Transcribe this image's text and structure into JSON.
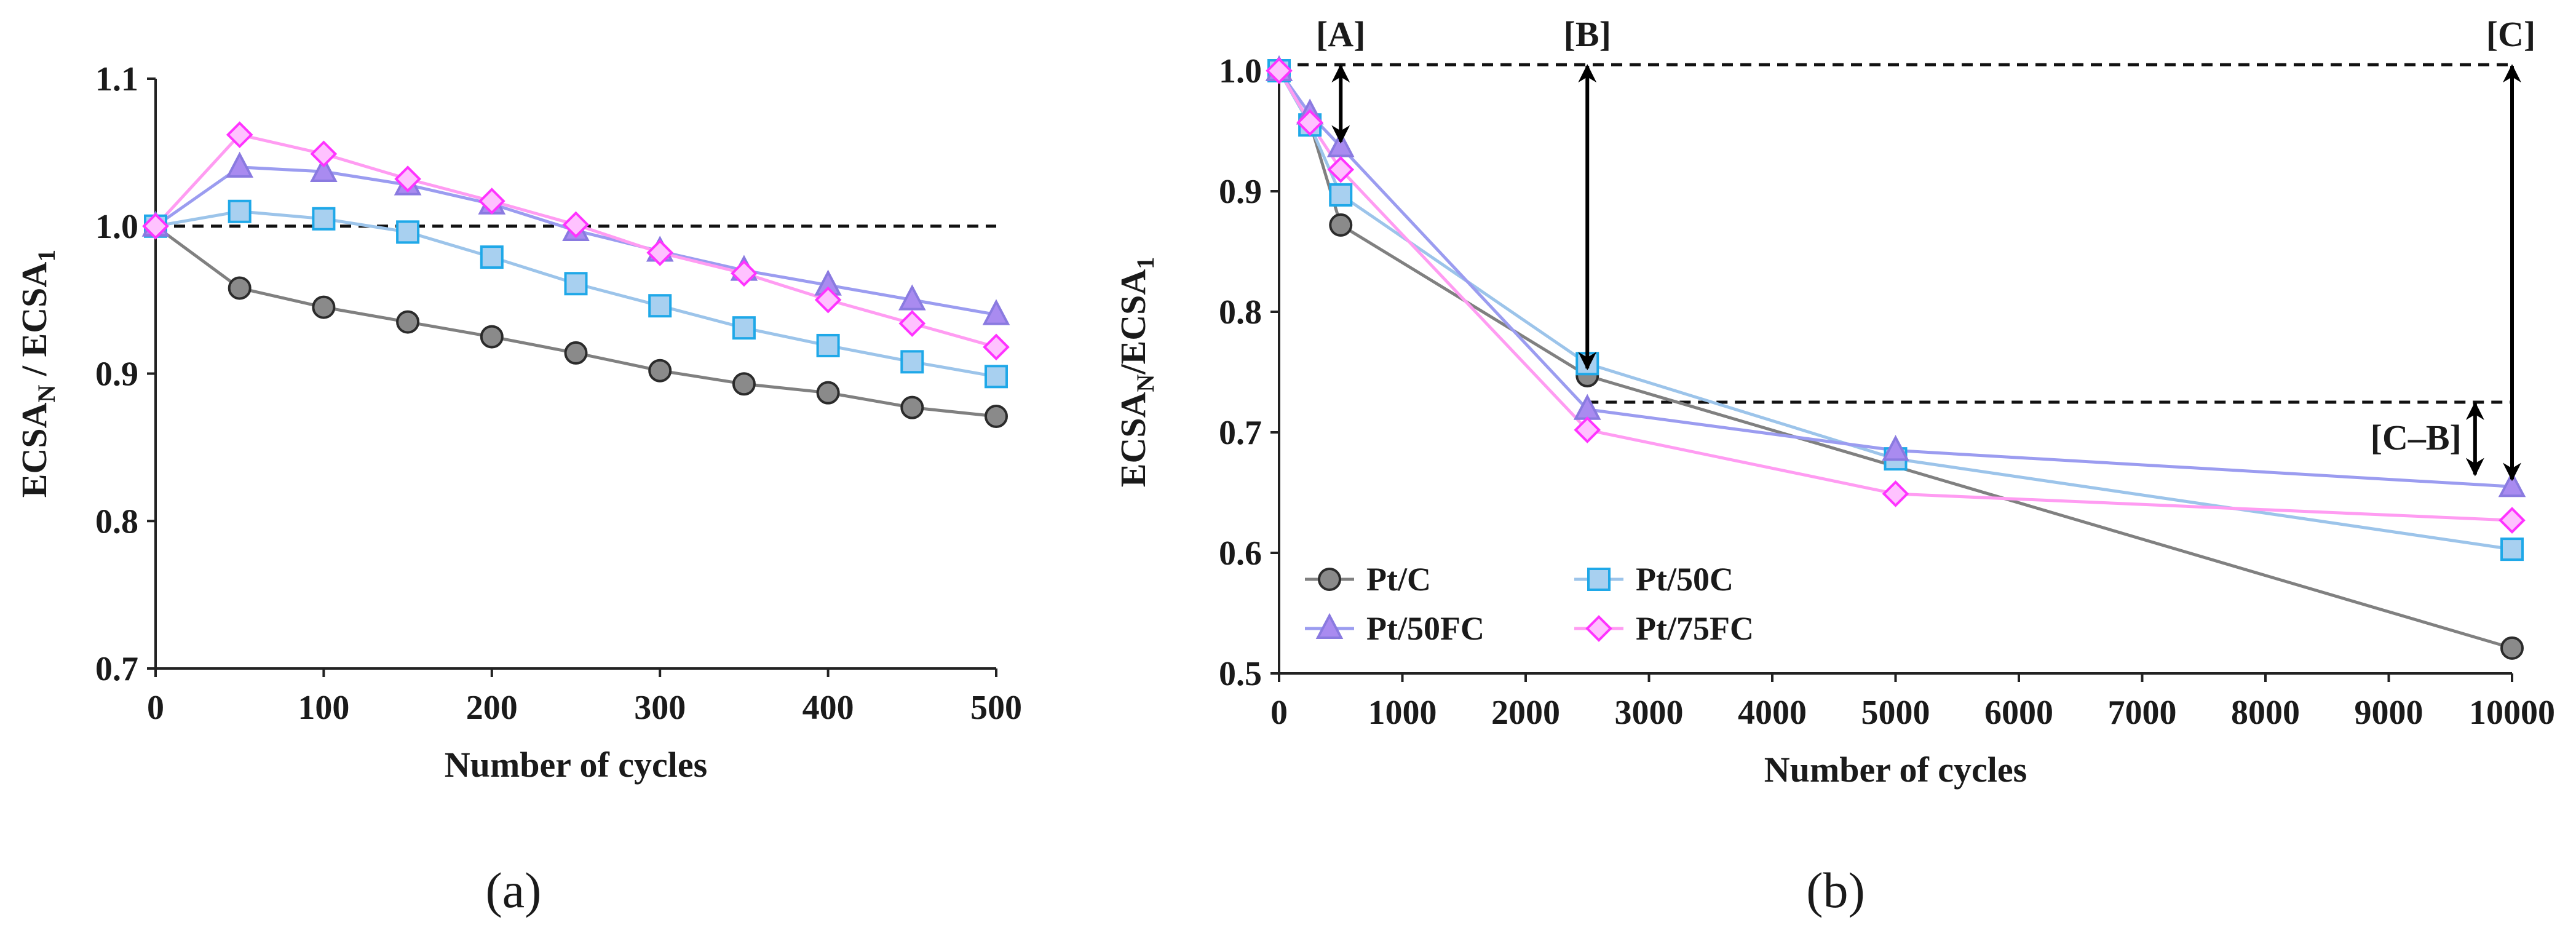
{
  "colors": {
    "Pt/C": "#808080",
    "Pt/50C": "#33b5f0",
    "Pt/50FC": "#a78cf2",
    "Pt/75FC": "#ff4cff",
    "line_Pt/C": "#808080",
    "line_Pt/50C": "#9cc4ea",
    "line_Pt/50FC": "#9b9cf0",
    "line_Pt/75FC": "#ff9cf2"
  },
  "chart_data": [
    {
      "panel_label": "(a)",
      "type": "line",
      "xlabel": "Number of cycles",
      "ylabel_main": "ECSA",
      "ylabel_sub_n": "N",
      "ylabel_mid": " / ECSA",
      "ylabel_sub_1": "1",
      "xlim": [
        0,
        500
      ],
      "ylim": [
        0.7,
        1.1
      ],
      "xticks": [
        "0",
        "100",
        "200",
        "300",
        "400",
        "500"
      ],
      "yticks": [
        "0.7",
        "0.8",
        "0.9",
        "1.0",
        "1.1"
      ],
      "reference_line_y": 1.0,
      "x": [
        0,
        50,
        100,
        150,
        200,
        250,
        300,
        350,
        400,
        450,
        500
      ],
      "series": [
        {
          "name": "Pt/C",
          "marker": "circle",
          "values": [
            1.0,
            0.958,
            0.945,
            0.935,
            0.925,
            0.914,
            0.902,
            0.893,
            0.887,
            0.877,
            0.871
          ]
        },
        {
          "name": "Pt/50C",
          "marker": "square",
          "values": [
            1.0,
            1.01,
            1.005,
            0.996,
            0.979,
            0.961,
            0.946,
            0.931,
            0.919,
            0.908,
            0.898
          ]
        },
        {
          "name": "Pt/50FC",
          "marker": "triangle",
          "values": [
            1.0,
            1.04,
            1.037,
            1.028,
            1.015,
            0.997,
            0.983,
            0.97,
            0.96,
            0.95,
            0.94
          ]
        },
        {
          "name": "Pt/75FC",
          "marker": "diamond",
          "values": [
            1.0,
            1.062,
            1.049,
            1.032,
            1.017,
            1.001,
            0.982,
            0.968,
            0.95,
            0.934,
            0.918
          ]
        }
      ]
    },
    {
      "panel_label": "(b)",
      "type": "line",
      "xlabel": "Number of cycles",
      "ylabel_main": "ECSA",
      "ylabel_sub_n": "N",
      "ylabel_mid": "/ECSA",
      "ylabel_sub_1": "1",
      "xlim": [
        0,
        10000
      ],
      "ylim": [
        0.5,
        1.0
      ],
      "xticks": [
        "0",
        "1000",
        "2000",
        "3000",
        "4000",
        "5000",
        "6000",
        "7000",
        "8000",
        "9000",
        "10000"
      ],
      "yticks": [
        "0.5",
        "0.6",
        "0.7",
        "0.8",
        "0.9",
        "1.0"
      ],
      "reference_line_y": 1.005,
      "reference_line_2": {
        "y": 0.725,
        "x_from": 2500,
        "x_to": 10000
      },
      "legend_position": "bottom-left",
      "series": [
        {
          "name": "Pt/C",
          "marker": "circle",
          "x": [
            0,
            250,
            500,
            2500,
            10000
          ],
          "values": [
            1.0,
            0.957,
            0.872,
            0.747,
            0.521
          ]
        },
        {
          "name": "Pt/50C",
          "marker": "square",
          "x": [
            0,
            250,
            500,
            2500,
            5000,
            10000
          ],
          "values": [
            1.0,
            0.955,
            0.897,
            0.757,
            0.678,
            0.603
          ]
        },
        {
          "name": "Pt/50FC",
          "marker": "triangle",
          "x": [
            0,
            250,
            500,
            2500,
            5000,
            10000
          ],
          "values": [
            1.0,
            0.964,
            0.937,
            0.719,
            0.685,
            0.655
          ]
        },
        {
          "name": "Pt/75FC",
          "marker": "diamond",
          "x": [
            0,
            250,
            500,
            2500,
            5000,
            10000
          ],
          "values": [
            1.0,
            0.957,
            0.918,
            0.702,
            0.649,
            0.627
          ]
        }
      ],
      "annotations": [
        {
          "label": "[A]",
          "x": 500,
          "y_top": 1.005,
          "y_bottom": 0.94
        },
        {
          "label": "[B]",
          "x": 2500,
          "y_top": 1.005,
          "y_bottom": 0.752
        },
        {
          "label": "[C]",
          "x": 10000,
          "y_top": 1.005,
          "y_bottom": 0.66
        },
        {
          "label": "[C–B]",
          "x": 9700,
          "y_top": 0.725,
          "y_bottom": 0.664
        }
      ]
    }
  ]
}
